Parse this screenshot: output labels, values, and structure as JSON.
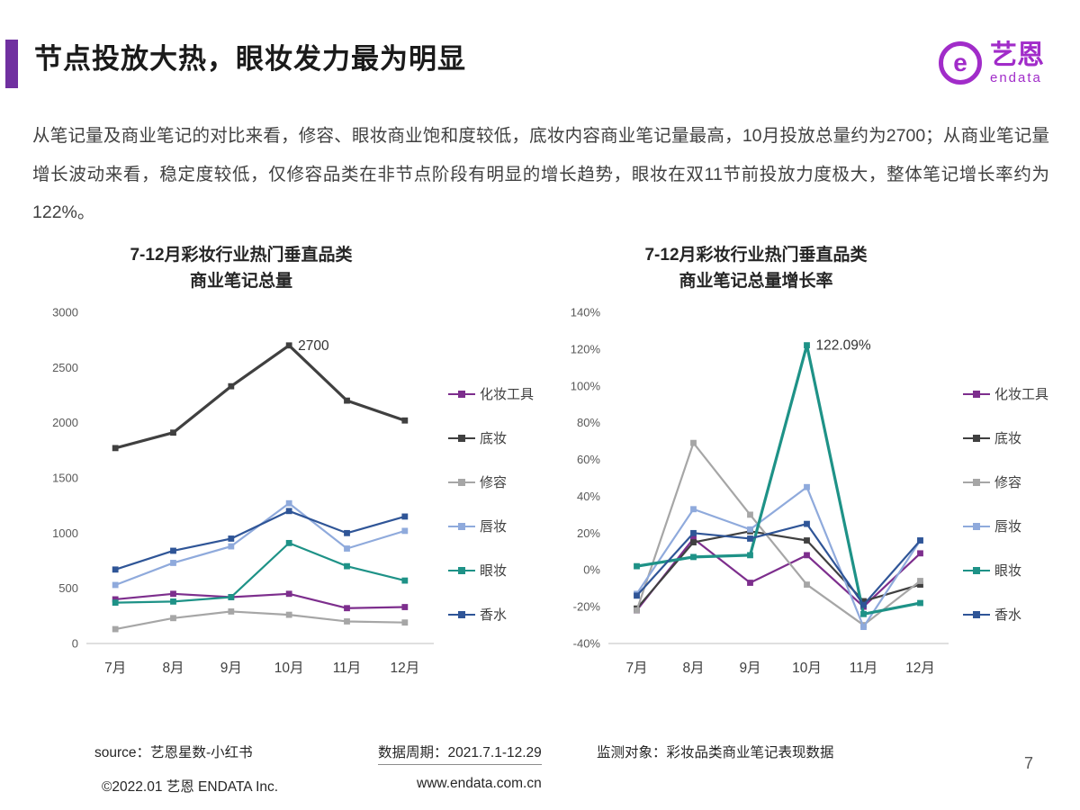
{
  "page": {
    "title": "节点投放大热，眼妆发力最为明显",
    "paragraph": "从笔记量及商业笔记的对比来看，修容、眼妆商业饱和度较低，底妆内容商业笔记量最高，10月投放总量约为2700；从商业笔记量增长波动来看，稳定度较低，仅修容品类在非节点阶段有明显的增长趋势，眼妆在双11节前投放力度极大，整体笔记增长率约为122%。",
    "page_number": "7"
  },
  "logo": {
    "mark": "e",
    "brand": "艺恩",
    "sub": "endata",
    "color": "#A12CC9"
  },
  "footer": {
    "source": "source：艺恩星数-小红书",
    "period": "数据周期：2021.7.1-12.29",
    "target": "监测对象：彩妆品类商业笔记表现数据",
    "copyright": "©2022.01 艺恩 ENDATA Inc.",
    "website": "www.endata.com.cn"
  },
  "colors": {
    "accent": "#7030A0",
    "brand_purple": "#A12CC9",
    "axis_line": "#bfbfbf",
    "tick_text": "#595959"
  },
  "chart_data": [
    {
      "type": "line",
      "title": "7-12月彩妆行业热门垂直品类\n商业笔记总量",
      "categories": [
        "7月",
        "8月",
        "9月",
        "10月",
        "11月",
        "12月"
      ],
      "ylim": [
        0,
        3000
      ],
      "ytick_step": 500,
      "ytick_suffix": "",
      "grid": false,
      "legend_position": "right",
      "series": [
        {
          "name": "化妆工具",
          "color": "#7D2E8D",
          "values": [
            400,
            450,
            420,
            450,
            320,
            330
          ]
        },
        {
          "name": "底妆",
          "color": "#404040",
          "values": [
            1770,
            1910,
            2330,
            2700,
            2200,
            2020
          ]
        },
        {
          "name": "修容",
          "color": "#A6A6A6",
          "values": [
            130,
            230,
            290,
            260,
            200,
            190
          ]
        },
        {
          "name": "唇妆",
          "color": "#8FAADC",
          "values": [
            530,
            730,
            880,
            1270,
            860,
            1020
          ]
        },
        {
          "name": "眼妆",
          "color": "#1E9287",
          "values": [
            370,
            380,
            420,
            910,
            700,
            570
          ]
        },
        {
          "name": "香水",
          "color": "#2F5597",
          "values": [
            670,
            840,
            950,
            1200,
            1000,
            1150
          ]
        }
      ],
      "annotation": {
        "series": "底妆",
        "index": 3,
        "text": "2700"
      }
    },
    {
      "type": "line",
      "title": "7-12月彩妆行业热门垂直品类\n商业笔记总量增长率",
      "categories": [
        "7月",
        "8月",
        "9月",
        "10月",
        "11月",
        "12月"
      ],
      "ylim": [
        -40,
        140
      ],
      "ytick_step": 20,
      "ytick_suffix": "%",
      "grid": false,
      "legend_position": "right",
      "series": [
        {
          "name": "化妆工具",
          "color": "#7D2E8D",
          "values": [
            -22,
            17,
            -7,
            8,
            -20,
            9
          ]
        },
        {
          "name": "底妆",
          "color": "#404040",
          "values": [
            -21,
            15,
            21,
            16,
            -17,
            -8
          ]
        },
        {
          "name": "修容",
          "color": "#A6A6A6",
          "values": [
            -22,
            69,
            30,
            -8,
            -30,
            -6
          ]
        },
        {
          "name": "唇妆",
          "color": "#8FAADC",
          "values": [
            -13,
            33,
            22,
            45,
            -31,
            16
          ]
        },
        {
          "name": "眼妆",
          "color": "#1E9287",
          "values": [
            2,
            7,
            8,
            122.09,
            -24,
            -18
          ]
        },
        {
          "name": "香水",
          "color": "#2F5597",
          "values": [
            -14,
            20,
            17,
            25,
            -19,
            16
          ]
        }
      ],
      "annotation": {
        "series": "眼妆",
        "index": 3,
        "text": "122.09%"
      }
    }
  ]
}
